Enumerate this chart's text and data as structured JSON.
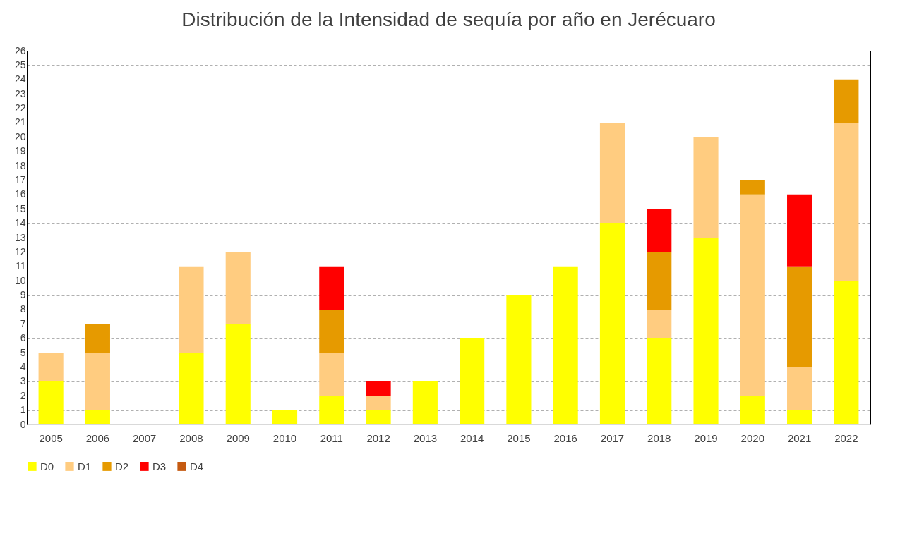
{
  "chart_data": {
    "type": "bar",
    "title": "Distribución de la Intensidad de sequía por año en Jerécuaro",
    "stacked": true,
    "categories": [
      "2005",
      "2006",
      "2007",
      "2008",
      "2009",
      "2010",
      "2011",
      "2012",
      "2013",
      "2014",
      "2015",
      "2016",
      "2017",
      "2018",
      "2019",
      "2020",
      "2021",
      "2022"
    ],
    "series": [
      {
        "name": "D0",
        "color": "#ffff00",
        "values": [
          3,
          1,
          0,
          5,
          7,
          1,
          2,
          1,
          3,
          6,
          9,
          11,
          14,
          6,
          13,
          2,
          1,
          10
        ]
      },
      {
        "name": "D1",
        "color": "#ffcc80",
        "values": [
          2,
          4,
          0,
          6,
          5,
          0,
          3,
          1,
          0,
          0,
          0,
          0,
          7,
          2,
          7,
          14,
          3,
          11
        ]
      },
      {
        "name": "D2",
        "color": "#e69a00",
        "values": [
          0,
          2,
          0,
          0,
          0,
          0,
          3,
          0,
          0,
          0,
          0,
          0,
          0,
          4,
          0,
          1,
          7,
          3
        ]
      },
      {
        "name": "D3",
        "color": "#ff0000",
        "values": [
          0,
          0,
          0,
          0,
          0,
          0,
          3,
          1,
          0,
          0,
          0,
          0,
          0,
          3,
          0,
          0,
          5,
          0
        ]
      },
      {
        "name": "D4",
        "color": "#c55a11",
        "values": [
          0,
          0,
          0,
          0,
          0,
          0,
          0,
          0,
          0,
          0,
          0,
          0,
          0,
          0,
          0,
          0,
          0,
          0
        ]
      }
    ],
    "ylim": [
      0,
      26
    ],
    "yticks": [
      0,
      1,
      2,
      3,
      4,
      5,
      6,
      7,
      8,
      9,
      10,
      11,
      12,
      13,
      14,
      15,
      16,
      17,
      18,
      19,
      20,
      21,
      22,
      23,
      24,
      25,
      26
    ],
    "grid": "y",
    "legend": "bottom"
  }
}
